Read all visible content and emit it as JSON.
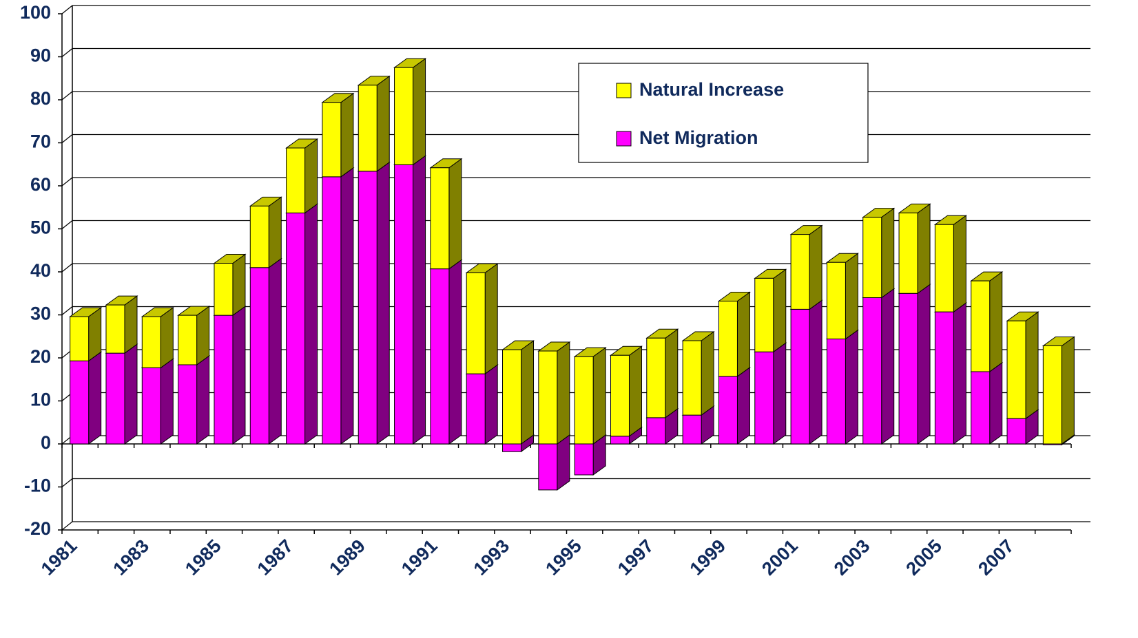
{
  "chart_data": {
    "type": "bar3d-stacked",
    "categories": [
      "1981",
      null,
      "1983",
      null,
      "1985",
      null,
      "1987",
      null,
      "1989",
      null,
      "1991",
      null,
      "1993",
      null,
      "1995",
      null,
      "1997",
      null,
      "1999",
      null,
      "2001",
      null,
      "2003",
      null,
      "2005",
      null,
      "2007",
      null
    ],
    "series": [
      {
        "name": "Net Migration",
        "color": "#ff00ff",
        "side": "#800080",
        "top": "#c000c0",
        "values": [
          19.3,
          21.1,
          17.7,
          18.4,
          29.9,
          41,
          53.7,
          62.1,
          63.4,
          64.9,
          40.7,
          16.3,
          -1.8,
          -10.7,
          -7.2,
          1.8,
          6.1,
          6.7,
          15.7,
          21.4,
          31.3,
          24.4,
          34,
          35,
          30.7,
          16.8,
          5.9,
          -0.2
        ]
      },
      {
        "name": "Natural Increase",
        "color": "#ffff00",
        "side": "#808000",
        "top": "#c8c800",
        "values": [
          10.3,
          11.2,
          11.9,
          11.5,
          12.1,
          14.3,
          15.1,
          17.3,
          20,
          22.6,
          23.5,
          23.5,
          21.9,
          21.6,
          20.3,
          18.8,
          18.5,
          17.3,
          17.5,
          17.1,
          17.4,
          17.8,
          18.7,
          18.7,
          20.3,
          21.1,
          22.7,
          22.8
        ]
      }
    ],
    "ylim": [
      -20,
      100
    ],
    "yticks": [
      -20,
      -10,
      0,
      10,
      20,
      30,
      40,
      50,
      60,
      70,
      80,
      90,
      100
    ],
    "grid": true
  }
}
